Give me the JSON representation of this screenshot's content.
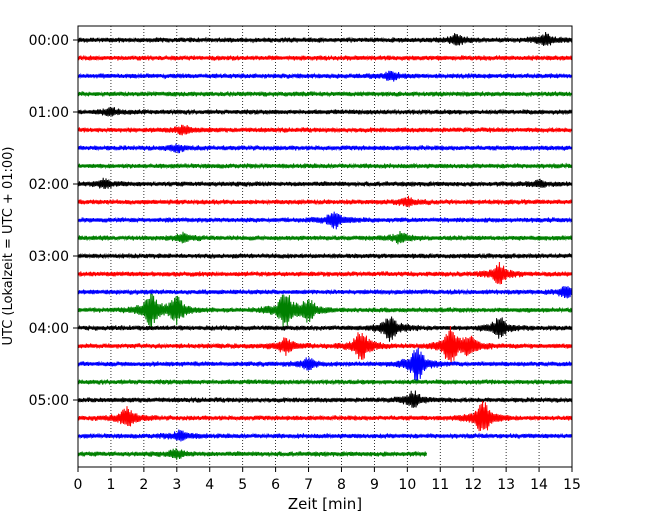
{
  "chart_data": {
    "type": "line",
    "title": "",
    "xlabel": "Zeit  [min]",
    "ylabel": "UTC (Lokalzeit = UTC + 01:00)",
    "xlim": [
      0,
      15
    ],
    "x_ticks": [
      "0",
      "1",
      "2",
      "3",
      "4",
      "5",
      "6",
      "7",
      "8",
      "9",
      "10",
      "11",
      "12",
      "13",
      "14",
      "15"
    ],
    "y_ticks": [
      "00:00",
      "01:00",
      "02:00",
      "03:00",
      "04:00",
      "05:00"
    ],
    "grid": "vertical dotted",
    "trace_interval_min": 15,
    "trace_colors": [
      "#000000",
      "#ff0000",
      "#0000ff",
      "#008000"
    ],
    "traces": [
      {
        "start": "00:00",
        "end_min": 15,
        "events": [
          {
            "t": 11.5,
            "amp": 0.5
          },
          {
            "t": 14.2,
            "amp": 0.6
          }
        ]
      },
      {
        "start": "00:15",
        "end_min": 15,
        "events": []
      },
      {
        "start": "00:30",
        "end_min": 15,
        "events": [
          {
            "t": 9.5,
            "amp": 0.4
          }
        ]
      },
      {
        "start": "00:45",
        "end_min": 15,
        "events": []
      },
      {
        "start": "01:00",
        "end_min": 15,
        "events": [
          {
            "t": 1.0,
            "amp": 0.3
          }
        ]
      },
      {
        "start": "01:15",
        "end_min": 15,
        "events": [
          {
            "t": 3.2,
            "amp": 0.4
          }
        ]
      },
      {
        "start": "01:30",
        "end_min": 15,
        "events": [
          {
            "t": 3.0,
            "amp": 0.3
          }
        ]
      },
      {
        "start": "01:45",
        "end_min": 15,
        "events": []
      },
      {
        "start": "02:00",
        "end_min": 15,
        "events": [
          {
            "t": 0.8,
            "amp": 0.4
          },
          {
            "t": 14.0,
            "amp": 0.3
          }
        ]
      },
      {
        "start": "02:15",
        "end_min": 15,
        "events": [
          {
            "t": 10.0,
            "amp": 0.4
          }
        ]
      },
      {
        "start": "02:30",
        "end_min": 15,
        "events": [
          {
            "t": 7.8,
            "amp": 0.8
          }
        ]
      },
      {
        "start": "02:45",
        "end_min": 15,
        "events": [
          {
            "t": 3.2,
            "amp": 0.4
          },
          {
            "t": 9.8,
            "amp": 0.5
          }
        ]
      },
      {
        "start": "03:00",
        "end_min": 15,
        "events": []
      },
      {
        "start": "03:15",
        "end_min": 15,
        "events": [
          {
            "t": 12.8,
            "amp": 1.0
          }
        ]
      },
      {
        "start": "03:30",
        "end_min": 15,
        "events": [
          {
            "t": 14.8,
            "amp": 0.5
          }
        ]
      },
      {
        "start": "03:45",
        "end_min": 15,
        "events": [
          {
            "t": 2.2,
            "amp": 1.6
          },
          {
            "t": 3.0,
            "amp": 1.3
          },
          {
            "t": 6.3,
            "amp": 1.8
          },
          {
            "t": 7.0,
            "amp": 1.0
          }
        ]
      },
      {
        "start": "04:00",
        "end_min": 15,
        "events": [
          {
            "t": 9.5,
            "amp": 1.3
          },
          {
            "t": 12.8,
            "amp": 1.0
          }
        ]
      },
      {
        "start": "04:15",
        "end_min": 15,
        "events": [
          {
            "t": 6.3,
            "amp": 0.8
          },
          {
            "t": 8.6,
            "amp": 1.6
          },
          {
            "t": 11.3,
            "amp": 1.8
          },
          {
            "t": 11.9,
            "amp": 1.0
          }
        ]
      },
      {
        "start": "04:30",
        "end_min": 15,
        "events": [
          {
            "t": 7.0,
            "amp": 0.5
          },
          {
            "t": 10.3,
            "amp": 1.7
          }
        ]
      },
      {
        "start": "04:45",
        "end_min": 15,
        "events": []
      },
      {
        "start": "05:00",
        "end_min": 15,
        "events": [
          {
            "t": 10.2,
            "amp": 0.8
          }
        ]
      },
      {
        "start": "05:15",
        "end_min": 15,
        "events": [
          {
            "t": 1.5,
            "amp": 1.0
          },
          {
            "t": 12.3,
            "amp": 1.7
          }
        ]
      },
      {
        "start": "05:30",
        "end_min": 15,
        "events": [
          {
            "t": 3.1,
            "amp": 0.5
          }
        ]
      },
      {
        "start": "05:45",
        "end_min": 10.6,
        "events": [
          {
            "t": 3.0,
            "amp": 0.4
          }
        ]
      }
    ]
  }
}
